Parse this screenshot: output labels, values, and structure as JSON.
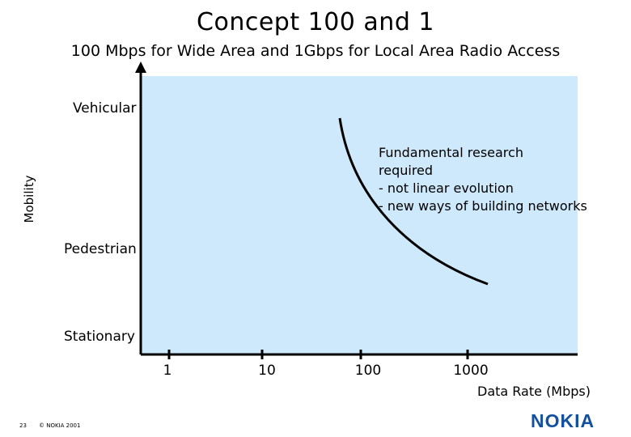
{
  "slide": {
    "title": "Concept 100 and 1",
    "subtitle": "100 Mbps for Wide Area and 1Gbps for Local Area Radio Access",
    "slide_number": "23",
    "copyright": "© NOKIA 2001",
    "logo_text": "NOKIA"
  },
  "diagram": {
    "y_axis_label": "Mobility",
    "x_axis_label": "Data Rate (Mbps)",
    "mobility_levels": [
      "Vehicular",
      "Pedestrian",
      "Stationary"
    ],
    "x_ticks": [
      "1",
      "10",
      "100",
      "1000"
    ],
    "annotation": [
      "Fundamental research",
      "required",
      "- not linear evolution",
      "- new ways of building networks"
    ],
    "colors": {
      "plot_background": "#cde9fb",
      "logo": "#1450a0"
    }
  }
}
